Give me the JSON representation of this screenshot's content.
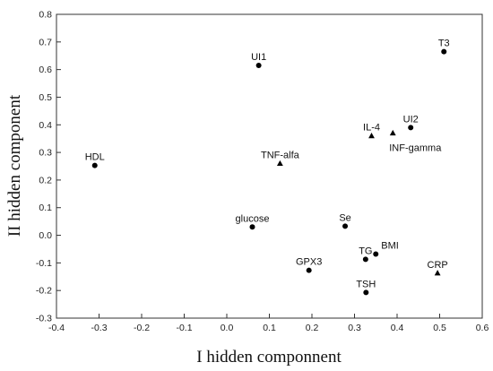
{
  "chart_data": {
    "type": "scatter",
    "title": "",
    "xlabel": "I hidden componnent",
    "ylabel": "II hidden component",
    "xlim": [
      -0.4,
      0.6
    ],
    "ylim": [
      -0.3,
      0.8
    ],
    "xticks": [
      "-0.4",
      "-0.3",
      "-0.2",
      "-0.1",
      "0.0",
      "0.1",
      "0.2",
      "0.3",
      "0.4",
      "0.5",
      "0.6"
    ],
    "yticks": [
      "-0.3",
      "-0.2",
      "-0.1",
      "0.0",
      "0.1",
      "0.2",
      "0.3",
      "0.4",
      "0.5",
      "0.6",
      "0.7",
      "0.8"
    ],
    "grid": false,
    "points": [
      {
        "label": "T3",
        "x": 0.51,
        "y": 0.665,
        "marker": "circle",
        "label_pos": "above"
      },
      {
        "label": "UI1",
        "x": 0.075,
        "y": 0.615,
        "marker": "circle",
        "label_pos": "above"
      },
      {
        "label": "UI2",
        "x": 0.432,
        "y": 0.39,
        "marker": "circle",
        "label_pos": "above"
      },
      {
        "label": "IL-4",
        "x": 0.34,
        "y": 0.36,
        "marker": "triangle",
        "label_pos": "above"
      },
      {
        "label": "INF-gamma",
        "x": 0.39,
        "y": 0.37,
        "marker": "triangle",
        "label_pos": "below-right"
      },
      {
        "label": "HDL",
        "x": -0.31,
        "y": 0.253,
        "marker": "circle",
        "label_pos": "above"
      },
      {
        "label": "TNF-alfa",
        "x": 0.125,
        "y": 0.26,
        "marker": "triangle",
        "label_pos": "above"
      },
      {
        "label": "glucose",
        "x": 0.06,
        "y": 0.03,
        "marker": "circle",
        "label_pos": "above"
      },
      {
        "label": "Se",
        "x": 0.278,
        "y": 0.033,
        "marker": "circle",
        "label_pos": "above"
      },
      {
        "label": "BMI",
        "x": 0.35,
        "y": -0.068,
        "marker": "circle",
        "label_pos": "above-right"
      },
      {
        "label": "TG",
        "x": 0.326,
        "y": -0.087,
        "marker": "circle",
        "label_pos": "above"
      },
      {
        "label": "GPX3",
        "x": 0.193,
        "y": -0.127,
        "marker": "circle",
        "label_pos": "above"
      },
      {
        "label": "CRP",
        "x": 0.495,
        "y": -0.137,
        "marker": "triangle",
        "label_pos": "above"
      },
      {
        "label": "TSH",
        "x": 0.327,
        "y": -0.207,
        "marker": "circle",
        "label_pos": "above"
      }
    ]
  }
}
